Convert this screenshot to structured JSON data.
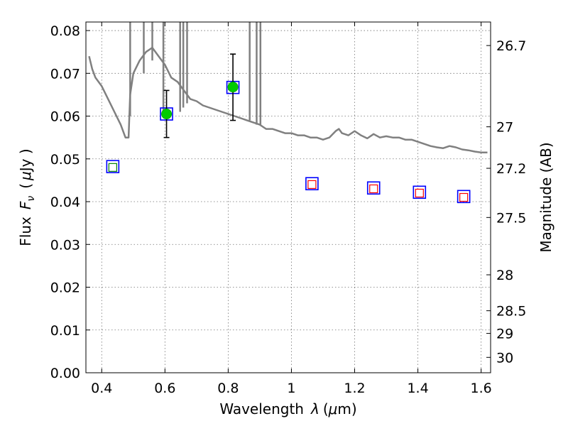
{
  "chart_data": {
    "type": "scatter",
    "title": "",
    "xlabel_main": "Wavelength",
    "xlabel_symbol": "λ",
    "xlabel_unit_open": "(",
    "xlabel_unit_mu": "μ",
    "xlabel_unit_rest": "m)",
    "ylabel_main": "Flux",
    "ylabel_symbol": "F",
    "ylabel_sub": "ν",
    "ylabel_unit_open": "(",
    "ylabel_unit_mu": "μ",
    "ylabel_unit_rest": "Jy )",
    "y2label": "Magnitude (AB)",
    "xlim": [
      0.35,
      1.63
    ],
    "ylim": [
      0.0,
      0.082
    ],
    "grid": true,
    "x_ticks": [
      0.4,
      0.6,
      0.8,
      1.0,
      1.2,
      1.4,
      1.6
    ],
    "x_tick_labels": [
      "0.4",
      "0.6",
      "0.8",
      "1",
      "1.2",
      "1.4",
      "1.6"
    ],
    "y_ticks": [
      0.0,
      0.01,
      0.02,
      0.03,
      0.04,
      0.05,
      0.06,
      0.07,
      0.08
    ],
    "y_tick_labels": [
      "0.00",
      "0.01",
      "0.02",
      "0.03",
      "0.04",
      "0.05",
      "0.06",
      "0.07",
      "0.08"
    ],
    "right_ticks": [
      {
        "flux": 0.0765,
        "label": "26.7"
      },
      {
        "flux": 0.0575,
        "label": "27"
      },
      {
        "flux": 0.0478,
        "label": "27.2"
      },
      {
        "flux": 0.0363,
        "label": "27.5"
      },
      {
        "flux": 0.0229,
        "label": "28"
      },
      {
        "flux": 0.0145,
        "label": "28.5"
      },
      {
        "flux": 0.0092,
        "label": "29"
      },
      {
        "flux": 0.0036,
        "label": "30"
      }
    ],
    "model_spectrum": {
      "color": "#808080",
      "x": [
        0.36,
        0.37,
        0.38,
        0.4,
        0.42,
        0.44,
        0.46,
        0.475,
        0.485,
        0.49,
        0.5,
        0.52,
        0.54,
        0.56,
        0.58,
        0.6,
        0.62,
        0.64,
        0.66,
        0.68,
        0.7,
        0.72,
        0.74,
        0.76,
        0.78,
        0.8,
        0.82,
        0.84,
        0.86,
        0.88,
        0.9,
        0.92,
        0.94,
        0.96,
        0.98,
        1.0,
        1.02,
        1.04,
        1.06,
        1.08,
        1.1,
        1.12,
        1.14,
        1.15,
        1.16,
        1.18,
        1.2,
        1.22,
        1.24,
        1.26,
        1.28,
        1.3,
        1.32,
        1.34,
        1.36,
        1.38,
        1.4,
        1.42,
        1.44,
        1.46,
        1.48,
        1.5,
        1.52,
        1.54,
        1.56,
        1.58,
        1.6,
        1.62
      ],
      "y": [
        0.074,
        0.071,
        0.069,
        0.067,
        0.064,
        0.061,
        0.058,
        0.055,
        0.055,
        0.065,
        0.07,
        0.073,
        0.075,
        0.076,
        0.074,
        0.072,
        0.069,
        0.068,
        0.066,
        0.064,
        0.0635,
        0.0625,
        0.062,
        0.0615,
        0.061,
        0.0605,
        0.06,
        0.0595,
        0.059,
        0.0585,
        0.058,
        0.057,
        0.057,
        0.0565,
        0.056,
        0.056,
        0.0555,
        0.0555,
        0.055,
        0.055,
        0.0545,
        0.055,
        0.0565,
        0.057,
        0.056,
        0.0555,
        0.0565,
        0.0555,
        0.0548,
        0.0558,
        0.055,
        0.0553,
        0.055,
        0.055,
        0.0545,
        0.0545,
        0.054,
        0.0535,
        0.053,
        0.0527,
        0.0525,
        0.053,
        0.0527,
        0.0522,
        0.052,
        0.0517,
        0.0515,
        0.0515
      ],
      "spikes": [
        {
          "x": 0.49,
          "peak": 0.082,
          "base": 0.06
        },
        {
          "x": 0.533,
          "peak": 0.082,
          "base": 0.07
        },
        {
          "x": 0.56,
          "peak": 0.082,
          "base": 0.073
        },
        {
          "x": 0.595,
          "peak": 0.082,
          "base": 0.061
        },
        {
          "x": 0.648,
          "peak": 0.082,
          "base": 0.061
        },
        {
          "x": 0.658,
          "peak": 0.082,
          "base": 0.062
        },
        {
          "x": 0.67,
          "peak": 0.082,
          "base": 0.063
        },
        {
          "x": 0.868,
          "peak": 0.082,
          "base": 0.059
        },
        {
          "x": 0.89,
          "peak": 0.082,
          "base": 0.058
        },
        {
          "x": 0.902,
          "peak": 0.082,
          "base": 0.058
        }
      ]
    },
    "blue_squares": {
      "color": "#0000ff",
      "x": [
        0.435,
        0.605,
        0.815,
        1.065,
        1.26,
        1.405,
        1.545
      ],
      "y": [
        0.0482,
        0.0605,
        0.0667,
        0.0442,
        0.0432,
        0.0422,
        0.0412
      ]
    },
    "red_squares": {
      "color": "#ff0000",
      "x": [
        1.065,
        1.26,
        1.405,
        1.545
      ],
      "y": [
        0.044,
        0.043,
        0.042,
        0.041
      ]
    },
    "green_square": {
      "color": "#008000",
      "x": [
        0.435
      ],
      "y": [
        0.048
      ]
    },
    "green_points": {
      "color": "#00cc00",
      "x": [
        0.605,
        0.815
      ],
      "y": [
        0.0605,
        0.0668
      ],
      "yerr_low": [
        0.055,
        0.059
      ],
      "yerr_high": [
        0.066,
        0.0745
      ]
    }
  }
}
